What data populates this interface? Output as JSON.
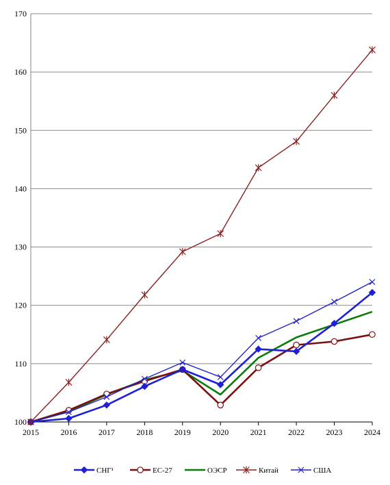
{
  "chart_data": {
    "type": "line",
    "title": "",
    "xlabel": "",
    "ylabel": "",
    "x": [
      2015,
      2016,
      2017,
      2018,
      2019,
      2020,
      2021,
      2022,
      2023,
      2024
    ],
    "ylim": [
      100,
      170
    ],
    "yticks": [
      100,
      110,
      120,
      130,
      140,
      150,
      160,
      170
    ],
    "grid": "horizontal",
    "legend_position": "bottom",
    "series": [
      {
        "name": "СНГ¹",
        "color": "#1f1fd6",
        "marker": "diamond",
        "values": [
          100,
          100.6,
          102.9,
          106.1,
          109.0,
          106.4,
          112.5,
          112.1,
          116.9,
          122.2
        ]
      },
      {
        "name": "ЕС-27",
        "color": "#7a1010",
        "marker": "circle",
        "values": [
          100,
          102.0,
          104.8,
          107.0,
          109.0,
          102.9,
          109.3,
          113.2,
          113.8,
          115.0
        ]
      },
      {
        "name": "ОЭСР",
        "color": "#0a7a0a",
        "marker": "none",
        "values": [
          100,
          101.8,
          104.7,
          107.2,
          108.8,
          104.7,
          111.0,
          114.5,
          116.7,
          118.9
        ]
      },
      {
        "name": "Китай",
        "color": "#8b2020",
        "marker": "asterisk",
        "values": [
          100,
          106.8,
          114.1,
          121.8,
          129.2,
          132.3,
          143.6,
          148.1,
          156.0,
          163.8
        ]
      },
      {
        "name": "США",
        "color": "#2222cc",
        "marker": "x",
        "values": [
          100,
          101.7,
          104.3,
          107.4,
          110.2,
          107.7,
          114.4,
          117.3,
          120.6,
          124.0
        ]
      }
    ]
  }
}
